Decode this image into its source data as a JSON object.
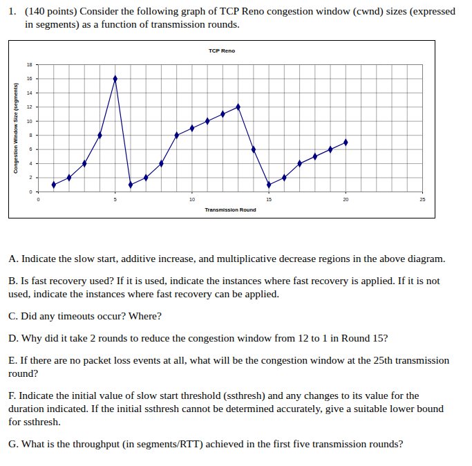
{
  "header": {
    "number": "1.",
    "text": "(140 points) Consider the following graph of TCP Reno congestion window (cwnd) sizes (expressed in segments) as a function of transmission rounds."
  },
  "chart_data": {
    "type": "line",
    "title": "TCP Reno",
    "x_label": "Transmission Round",
    "y_label": "Congestion Window Size (segments)",
    "x": [
      1,
      2,
      3,
      4,
      5,
      6,
      7,
      8,
      9,
      10,
      11,
      12,
      13,
      14,
      15,
      16,
      17,
      18,
      19,
      20
    ],
    "series": [
      {
        "name": "TCP Reno",
        "color": "#000080",
        "marker": "diamond",
        "values": [
          1,
          2,
          4,
          8,
          16,
          1,
          2,
          4,
          8,
          9,
          10,
          11,
          12,
          6,
          1,
          2,
          4,
          5,
          6,
          7
        ]
      }
    ],
    "xlim": [
      0,
      25
    ],
    "xticks": [
      0,
      5,
      10,
      15,
      20,
      25
    ],
    "ylim": [
      0,
      18
    ],
    "yticks": [
      0,
      2,
      4,
      6,
      8,
      10,
      12,
      14,
      16,
      18
    ],
    "grid": true
  },
  "questions": [
    "A. Indicate the slow start, additive increase, and multiplicative decrease regions in the above diagram.",
    "B. Is fast recovery used? If it is used, indicate the instances where fast recovery is applied. If it is not used, indicate the instances where fast recovery can be applied.",
    "C. Did any timeouts occur? Where?",
    "D. Why did it take 2 rounds to reduce the congestion window from 12 to 1 in Round 15?",
    "E. If there are no packet loss events at all, what will be the congestion window at the 25th transmission round?",
    "F. Indicate the initial value of slow start threshold (ssthresh) and any changes to its value for the duration indicated. If the initial ssthresh cannot be determined accurately, give a suitable lower bound for ssthresh.",
    "G. What is the throughput (in segments/RTT) achieved in the first five transmission rounds?"
  ]
}
